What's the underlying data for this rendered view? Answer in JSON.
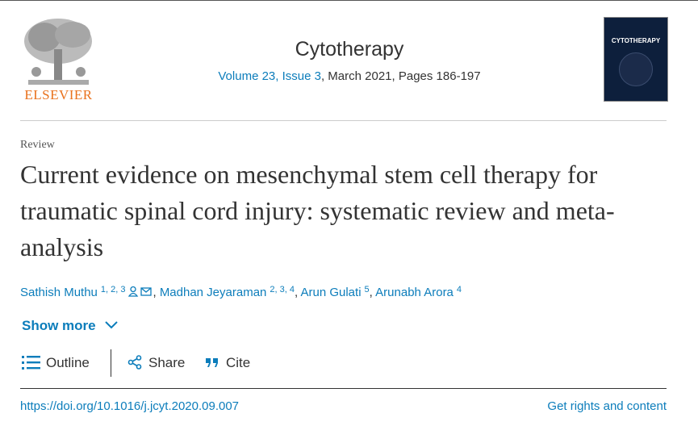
{
  "header": {
    "publisher": "ELSEVIER",
    "journal": "Cytotherapy",
    "issue_link": "Volume 23, Issue 3",
    "issue_details": ", March 2021, Pages 186-197",
    "cover_title": "CYTOTHERAPY"
  },
  "article": {
    "type": "Review",
    "title": "Current evidence on mesenchymal stem cell therapy for traumatic spinal cord injury: systematic review and meta-analysis",
    "author_separator": ", ",
    "authors": [
      {
        "name": "Sathish Muthu",
        "affiliations": "1, 2, 3"
      },
      {
        "name": "Madhan Jeyaraman",
        "affiliations": "2, 3, 4"
      },
      {
        "name": "Arun Gulati",
        "affiliations": "5"
      },
      {
        "name": "Arunabh Arora",
        "affiliations": "4"
      }
    ],
    "show_more": "Show more"
  },
  "toolbar": {
    "outline": "Outline",
    "share": "Share",
    "cite": "Cite"
  },
  "footer": {
    "doi": "https://doi.org/10.1016/j.jcyt.2020.09.007",
    "rights": "Get rights and content"
  }
}
